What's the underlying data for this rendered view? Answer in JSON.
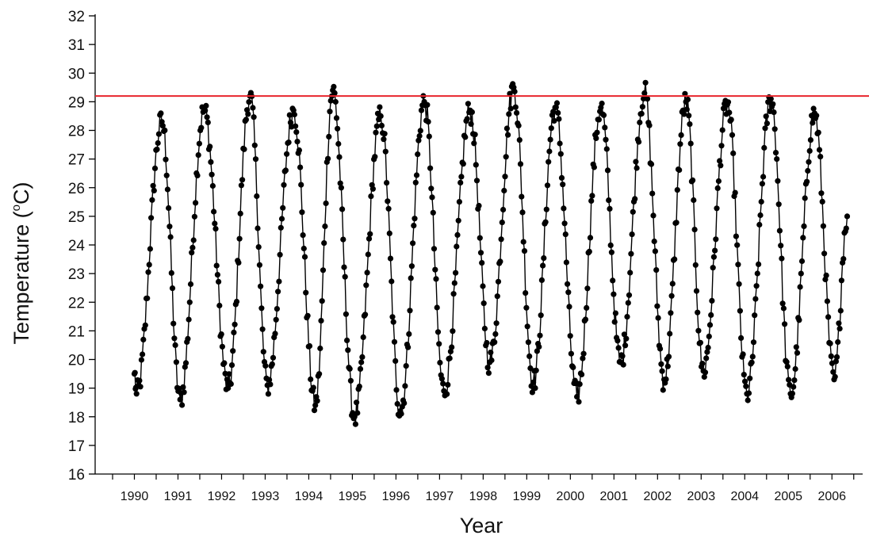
{
  "chart_data": {
    "type": "line",
    "xlabel": "Year",
    "ylabel_text": "Temperature (",
    "ylabel_sup": "o",
    "ylabel_unit": "C)",
    "x_tick_labels": [
      "1990",
      "1991",
      "1992",
      "1993",
      "1994",
      "1995",
      "1996",
      "1997",
      "1998",
      "1999",
      "2000",
      "2001",
      "2002",
      "2003",
      "2004",
      "2005",
      "2006"
    ],
    "xlim": [
      1989.1,
      2006.85
    ],
    "ylim": [
      16,
      32
    ],
    "y_ticks": [
      16,
      17,
      18,
      19,
      20,
      21,
      22,
      23,
      24,
      25,
      26,
      27,
      28,
      29,
      30,
      31,
      32
    ],
    "threshold": {
      "value": 29.2,
      "color": "#e8242c"
    },
    "series_color": "#000000",
    "grid": false,
    "cycles": [
      {
        "min_t": 1990.05,
        "min": 18.8,
        "max_t": 1990.63,
        "max": 28.3
      },
      {
        "min_t": 1991.05,
        "min": 18.6,
        "max_t": 1991.6,
        "max": 28.7
      },
      {
        "min_t": 1992.15,
        "min": 19.0,
        "max_t": 1992.65,
        "max": 29.2
      },
      {
        "min_t": 1993.05,
        "min": 19.1,
        "max_t": 1993.65,
        "max": 28.7
      },
      {
        "min_t": 1994.15,
        "min": 18.4,
        "max_t": 1994.55,
        "max": 29.4
      },
      {
        "min_t": 1995.05,
        "min": 18.0,
        "max_t": 1995.65,
        "max": 28.5
      },
      {
        "min_t": 1996.1,
        "min": 18.2,
        "max_t": 1996.65,
        "max": 29.0
      },
      {
        "min_t": 1997.1,
        "min": 18.9,
        "max_t": 1997.7,
        "max": 28.7
      },
      {
        "min_t": 1998.15,
        "min": 19.9,
        "max_t": 1998.7,
        "max": 29.5
      },
      {
        "min_t": 1999.15,
        "min": 19.2,
        "max_t": 1999.65,
        "max": 28.8
      },
      {
        "min_t": 2000.15,
        "min": 18.7,
        "max_t": 2000.7,
        "max": 28.8
      },
      {
        "min_t": 2001.15,
        "min": 19.9,
        "max_t": 2001.7,
        "max": 29.3
      },
      {
        "min_t": 2002.15,
        "min": 19.3,
        "max_t": 2002.65,
        "max": 29.0
      },
      {
        "min_t": 2003.05,
        "min": 19.6,
        "max_t": 2003.6,
        "max": 28.9
      },
      {
        "min_t": 2004.05,
        "min": 18.8,
        "max_t": 2004.6,
        "max": 29.1
      },
      {
        "min_t": 2005.05,
        "min": 18.8,
        "max_t": 2005.6,
        "max": 28.6
      },
      {
        "min_t": 2006.05,
        "min": 19.3,
        "max_t": 2006.35,
        "max": 25.0
      }
    ],
    "start": {
      "t": 1990.0,
      "value": 19.5
    }
  }
}
